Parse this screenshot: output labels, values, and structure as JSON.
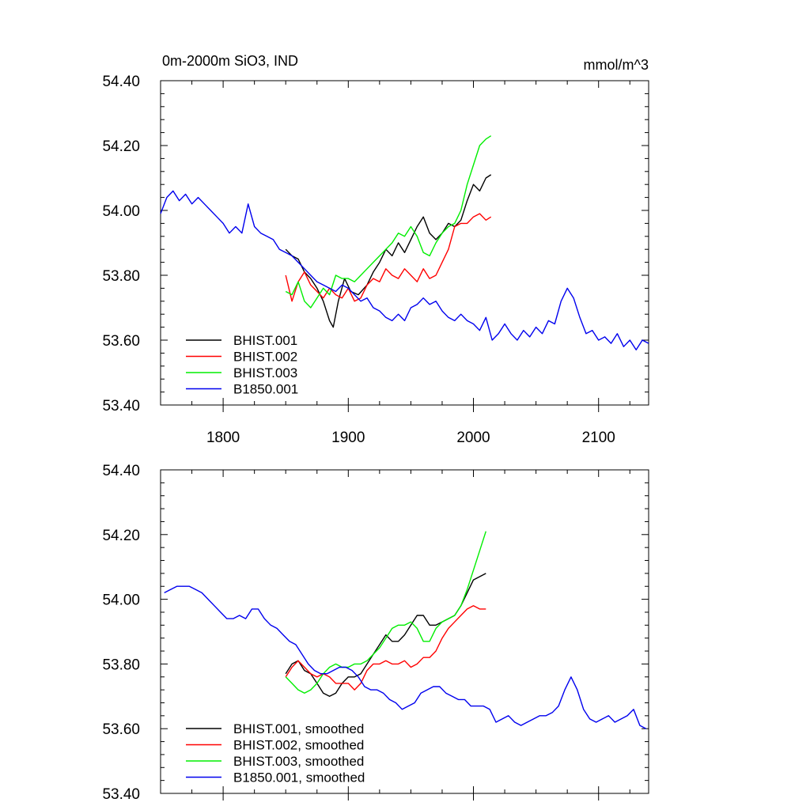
{
  "chart_data": [
    {
      "type": "line",
      "title": "0m-2000m SiO3, IND",
      "units": "mmol/m^3",
      "xlim": [
        1750,
        2140
      ],
      "ylim": [
        53.4,
        54.4
      ],
      "yticks": [
        "54.40",
        "54.20",
        "54.00",
        "53.80",
        "53.60",
        "53.40"
      ],
      "xticks": [
        "1800",
        "1900",
        "2000",
        "2100"
      ],
      "grid": false,
      "legend_position": "bottom-left",
      "series": [
        {
          "name": "BHIST.001",
          "color": "#000000",
          "x": [
            1850,
            1855,
            1860,
            1865,
            1870,
            1875,
            1880,
            1885,
            1888,
            1892,
            1897,
            1902,
            1908,
            1915,
            1920,
            1925,
            1930,
            1935,
            1940,
            1945,
            1950,
            1955,
            1960,
            1965,
            1970,
            1975,
            1980,
            1985,
            1990,
            1995,
            2000,
            2005,
            2010,
            2014
          ],
          "y": [
            53.88,
            53.86,
            53.85,
            53.81,
            53.79,
            53.76,
            53.72,
            53.66,
            53.64,
            53.72,
            53.79,
            53.75,
            53.74,
            53.77,
            53.81,
            53.84,
            53.88,
            53.86,
            53.9,
            53.87,
            53.91,
            53.95,
            53.98,
            53.93,
            53.91,
            53.93,
            53.96,
            53.95,
            53.97,
            54.03,
            54.08,
            54.06,
            54.1,
            54.11
          ]
        },
        {
          "name": "BHIST.002",
          "color": "#ff0000",
          "x": [
            1850,
            1855,
            1860,
            1865,
            1870,
            1875,
            1880,
            1885,
            1890,
            1895,
            1900,
            1905,
            1910,
            1915,
            1920,
            1925,
            1930,
            1935,
            1940,
            1945,
            1950,
            1955,
            1960,
            1965,
            1970,
            1975,
            1980,
            1985,
            1990,
            1995,
            2000,
            2005,
            2010,
            2014
          ],
          "y": [
            53.8,
            53.72,
            53.78,
            53.81,
            53.77,
            53.75,
            53.73,
            53.76,
            53.74,
            53.73,
            53.76,
            53.72,
            53.73,
            53.77,
            53.79,
            53.78,
            53.82,
            53.8,
            53.79,
            53.82,
            53.8,
            53.78,
            53.82,
            53.79,
            53.8,
            53.84,
            53.88,
            53.95,
            53.96,
            53.96,
            53.98,
            53.99,
            53.97,
            53.98
          ]
        },
        {
          "name": "BHIST.003",
          "color": "#00ee00",
          "x": [
            1850,
            1855,
            1860,
            1865,
            1870,
            1875,
            1880,
            1885,
            1890,
            1895,
            1900,
            1905,
            1910,
            1915,
            1920,
            1925,
            1930,
            1935,
            1940,
            1945,
            1950,
            1955,
            1960,
            1965,
            1970,
            1975,
            1980,
            1985,
            1990,
            1995,
            2000,
            2005,
            2010,
            2014
          ],
          "y": [
            53.75,
            53.74,
            53.78,
            53.72,
            53.7,
            53.73,
            53.76,
            53.74,
            53.8,
            53.79,
            53.79,
            53.78,
            53.8,
            53.82,
            53.84,
            53.86,
            53.88,
            53.9,
            53.93,
            53.92,
            53.95,
            53.92,
            53.87,
            53.86,
            53.9,
            53.93,
            53.95,
            53.96,
            54.0,
            54.08,
            54.14,
            54.2,
            54.22,
            54.23
          ]
        },
        {
          "name": "B1850.001",
          "color": "#0000ee",
          "x": [
            1750,
            1755,
            1760,
            1765,
            1770,
            1775,
            1780,
            1785,
            1790,
            1795,
            1800,
            1805,
            1810,
            1815,
            1820,
            1825,
            1830,
            1835,
            1840,
            1845,
            1850,
            1855,
            1860,
            1865,
            1870,
            1875,
            1880,
            1885,
            1890,
            1895,
            1900,
            1905,
            1910,
            1915,
            1920,
            1925,
            1930,
            1935,
            1940,
            1945,
            1950,
            1955,
            1960,
            1965,
            1970,
            1975,
            1980,
            1985,
            1990,
            1995,
            2000,
            2005,
            2010,
            2015,
            2020,
            2025,
            2030,
            2035,
            2040,
            2045,
            2050,
            2055,
            2060,
            2065,
            2070,
            2075,
            2080,
            2085,
            2090,
            2095,
            2100,
            2105,
            2110,
            2115,
            2120,
            2125,
            2130,
            2135,
            2140
          ],
          "y": [
            53.99,
            54.04,
            54.06,
            54.03,
            54.05,
            54.02,
            54.04,
            54.02,
            54.0,
            53.98,
            53.96,
            53.93,
            53.95,
            53.93,
            54.02,
            53.95,
            53.93,
            53.92,
            53.91,
            53.88,
            53.87,
            53.86,
            53.84,
            53.82,
            53.8,
            53.78,
            53.77,
            53.76,
            53.75,
            53.77,
            53.76,
            53.74,
            53.72,
            53.73,
            53.7,
            53.69,
            53.67,
            53.66,
            53.68,
            53.66,
            53.7,
            53.71,
            53.73,
            53.71,
            53.72,
            53.69,
            53.67,
            53.66,
            53.68,
            53.66,
            53.65,
            53.63,
            53.67,
            53.6,
            53.62,
            53.65,
            53.62,
            53.6,
            53.63,
            53.61,
            53.64,
            53.62,
            53.66,
            53.65,
            53.72,
            53.76,
            53.73,
            53.67,
            53.62,
            53.63,
            53.6,
            53.61,
            53.59,
            53.62,
            53.58,
            53.6,
            53.57,
            53.6,
            53.59
          ]
        }
      ]
    },
    {
      "type": "line",
      "xlim": [
        1750,
        2140
      ],
      "ylim": [
        53.4,
        54.4
      ],
      "yticks": [
        "54.40",
        "54.20",
        "54.00",
        "53.80",
        "53.60",
        "53.40"
      ],
      "grid": false,
      "legend_position": "bottom-left",
      "series": [
        {
          "name": "BHIST.001, smoothed",
          "color": "#000000",
          "x": [
            1850,
            1855,
            1860,
            1865,
            1870,
            1875,
            1880,
            1885,
            1890,
            1895,
            1900,
            1905,
            1910,
            1915,
            1920,
            1925,
            1930,
            1935,
            1940,
            1945,
            1950,
            1955,
            1960,
            1965,
            1970,
            1975,
            1980,
            1985,
            1990,
            1995,
            2000,
            2005,
            2010
          ],
          "y": [
            53.77,
            53.8,
            53.81,
            53.78,
            53.77,
            53.74,
            53.71,
            53.7,
            53.71,
            53.74,
            53.76,
            53.76,
            53.77,
            53.8,
            53.83,
            53.86,
            53.89,
            53.87,
            53.87,
            53.89,
            53.92,
            53.95,
            53.95,
            53.92,
            53.92,
            53.93,
            53.94,
            53.95,
            53.98,
            54.02,
            54.06,
            54.07,
            54.08
          ]
        },
        {
          "name": "BHIST.002, smoothed",
          "color": "#ff0000",
          "x": [
            1850,
            1855,
            1860,
            1865,
            1870,
            1875,
            1880,
            1885,
            1890,
            1895,
            1900,
            1905,
            1910,
            1915,
            1920,
            1925,
            1930,
            1935,
            1940,
            1945,
            1950,
            1955,
            1960,
            1965,
            1970,
            1975,
            1980,
            1985,
            1990,
            1995,
            2000,
            2005,
            2010
          ],
          "y": [
            53.76,
            53.79,
            53.81,
            53.79,
            53.77,
            53.76,
            53.77,
            53.76,
            53.74,
            53.74,
            53.74,
            53.72,
            53.74,
            53.78,
            53.8,
            53.8,
            53.81,
            53.8,
            53.8,
            53.81,
            53.79,
            53.8,
            53.82,
            53.82,
            53.84,
            53.88,
            53.91,
            53.93,
            53.95,
            53.97,
            53.98,
            53.97,
            53.97
          ]
        },
        {
          "name": "BHIST.003, smoothed",
          "color": "#00ee00",
          "x": [
            1850,
            1855,
            1860,
            1865,
            1870,
            1875,
            1880,
            1885,
            1890,
            1895,
            1900,
            1905,
            1910,
            1915,
            1920,
            1925,
            1930,
            1935,
            1940,
            1945,
            1950,
            1955,
            1960,
            1965,
            1970,
            1975,
            1980,
            1985,
            1990,
            1995,
            2000,
            2005,
            2010
          ],
          "y": [
            53.76,
            53.74,
            53.72,
            53.71,
            53.72,
            53.74,
            53.77,
            53.79,
            53.8,
            53.79,
            53.79,
            53.8,
            53.8,
            53.81,
            53.83,
            53.85,
            53.88,
            53.91,
            53.92,
            53.92,
            53.93,
            53.91,
            53.87,
            53.87,
            53.91,
            53.93,
            53.94,
            53.95,
            53.98,
            54.03,
            54.09,
            54.15,
            54.21
          ]
        },
        {
          "name": "B1850.001, smoothed",
          "color": "#0000ee",
          "x": [
            1753,
            1758,
            1763,
            1768,
            1773,
            1778,
            1783,
            1788,
            1793,
            1798,
            1803,
            1808,
            1813,
            1818,
            1823,
            1828,
            1833,
            1838,
            1843,
            1848,
            1853,
            1858,
            1863,
            1868,
            1873,
            1878,
            1883,
            1888,
            1893,
            1898,
            1903,
            1908,
            1913,
            1918,
            1923,
            1928,
            1933,
            1938,
            1943,
            1948,
            1953,
            1958,
            1963,
            1968,
            1973,
            1978,
            1983,
            1988,
            1993,
            1998,
            2003,
            2008,
            2013,
            2018,
            2023,
            2028,
            2033,
            2038,
            2043,
            2048,
            2053,
            2058,
            2063,
            2068,
            2073,
            2078,
            2083,
            2088,
            2093,
            2098,
            2103,
            2108,
            2113,
            2118,
            2123,
            2128,
            2133,
            2138
          ],
          "y": [
            54.02,
            54.03,
            54.04,
            54.04,
            54.04,
            54.03,
            54.02,
            54.0,
            53.98,
            53.96,
            53.94,
            53.94,
            53.95,
            53.94,
            53.97,
            53.97,
            53.94,
            53.92,
            53.91,
            53.89,
            53.87,
            53.86,
            53.83,
            53.8,
            53.78,
            53.77,
            53.77,
            53.78,
            53.79,
            53.79,
            53.78,
            53.76,
            53.73,
            53.72,
            53.72,
            53.71,
            53.69,
            53.68,
            53.66,
            53.67,
            53.68,
            53.71,
            53.72,
            53.73,
            53.73,
            53.71,
            53.7,
            53.69,
            53.69,
            53.67,
            53.67,
            53.67,
            53.66,
            53.62,
            53.63,
            53.64,
            53.62,
            53.61,
            53.62,
            53.63,
            53.64,
            53.64,
            53.65,
            53.67,
            53.72,
            53.76,
            53.72,
            53.66,
            53.63,
            53.62,
            53.63,
            53.64,
            53.62,
            53.63,
            53.64,
            53.66,
            53.61,
            53.6
          ]
        }
      ]
    }
  ]
}
